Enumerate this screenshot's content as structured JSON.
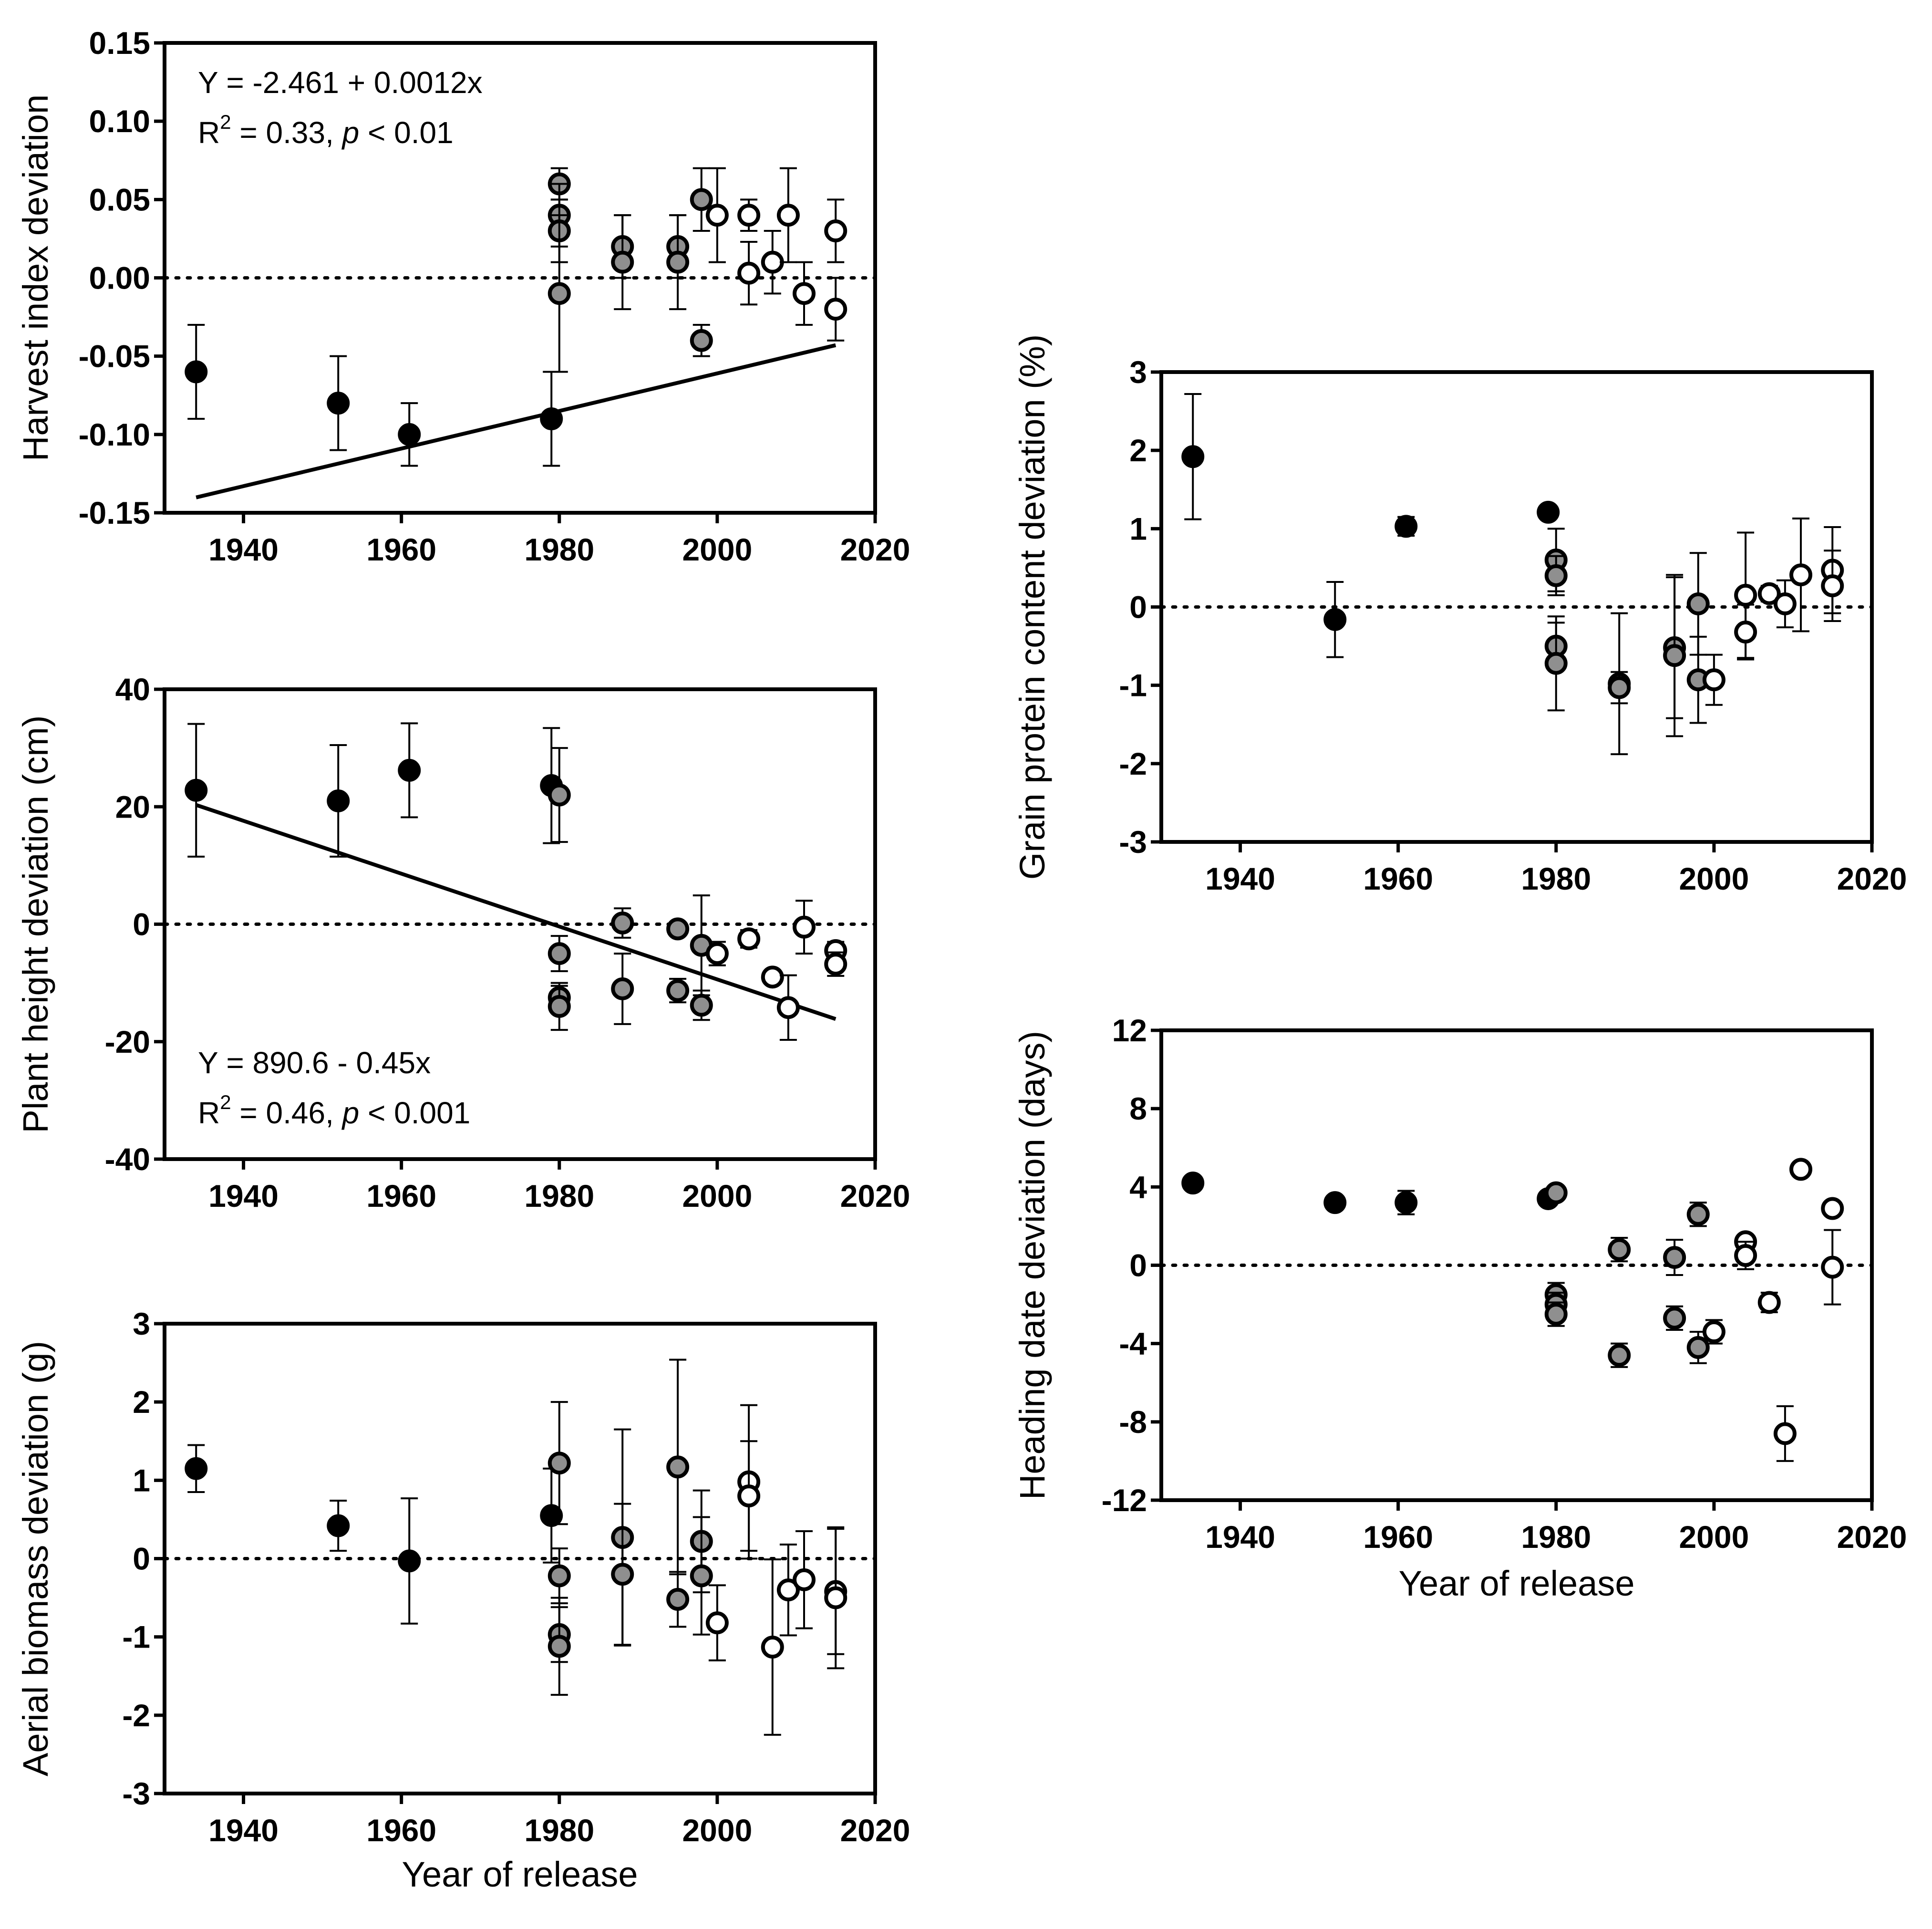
{
  "chart_data": [
    {
      "id": "harvest",
      "type": "scatter",
      "ylabel": "Harvest index deviation",
      "xlabel": "",
      "xlim": [
        1930,
        2020
      ],
      "ylim": [
        -0.15,
        0.15
      ],
      "xticks": [
        1940,
        1960,
        1980,
        2000,
        2020
      ],
      "xtick_labels": [
        "1940",
        "1960",
        "1980",
        "2000",
        "2020"
      ],
      "yticks": [
        -0.15,
        -0.1,
        -0.05,
        0.0,
        0.05,
        0.1,
        0.15
      ],
      "ytick_labels": [
        "-0.15",
        "-0.10",
        "-0.05",
        "0.00",
        "0.05",
        "0.10",
        "0.15"
      ],
      "reference_line": 0,
      "regression": {
        "x1": 1934,
        "x2": 2015,
        "intercept": -2.461,
        "slope": 0.0012
      },
      "equation": "Y = -2.461 + 0.0012x",
      "r2": {
        "r": "R",
        "sup": "2",
        "value": " = 0.33, ",
        "p": "p",
        "comparison": " < 0.01"
      },
      "annotation_position": "top-left",
      "points": [
        {
          "x": 1934,
          "y": -0.06,
          "err": 0.03,
          "group": "old"
        },
        {
          "x": 1952,
          "y": -0.08,
          "err": 0.03,
          "group": "old"
        },
        {
          "x": 1961,
          "y": -0.1,
          "err": 0.02,
          "group": "old"
        },
        {
          "x": 1979,
          "y": -0.09,
          "err": 0.03,
          "group": "old"
        },
        {
          "x": 1980,
          "y": 0.06,
          "err": 0.01,
          "group": "mid"
        },
        {
          "x": 1980,
          "y": 0.04,
          "err": 0.02,
          "group": "mid"
        },
        {
          "x": 1980,
          "y": 0.03,
          "err": 0.02,
          "group": "mid"
        },
        {
          "x": 1980,
          "y": -0.01,
          "err": 0.05,
          "group": "mid"
        },
        {
          "x": 1988,
          "y": 0.02,
          "err": 0.02,
          "group": "mid"
        },
        {
          "x": 1988,
          "y": 0.01,
          "err": 0.03,
          "group": "mid"
        },
        {
          "x": 1995,
          "y": 0.02,
          "err": 0.02,
          "group": "mid"
        },
        {
          "x": 1995,
          "y": 0.01,
          "err": 0.03,
          "group": "mid"
        },
        {
          "x": 1998,
          "y": 0.05,
          "err": 0.02,
          "group": "mid"
        },
        {
          "x": 1998,
          "y": -0.04,
          "err": 0.01,
          "group": "mid"
        },
        {
          "x": 2000,
          "y": 0.04,
          "err": 0.03,
          "group": "new"
        },
        {
          "x": 2004,
          "y": 0.04,
          "err": 0.01,
          "group": "new"
        },
        {
          "x": 2004,
          "y": 0.003,
          "err": 0.02,
          "group": "new"
        },
        {
          "x": 2007,
          "y": 0.01,
          "err": 0.02,
          "group": "new"
        },
        {
          "x": 2009,
          "y": 0.04,
          "err": 0.03,
          "group": "new"
        },
        {
          "x": 2011,
          "y": -0.01,
          "err": 0.02,
          "group": "new"
        },
        {
          "x": 2015,
          "y": 0.03,
          "err": 0.02,
          "group": "new"
        },
        {
          "x": 2015,
          "y": -0.02,
          "err": 0.02,
          "group": "new"
        }
      ]
    },
    {
      "id": "height",
      "type": "scatter",
      "ylabel": "Plant height deviation (cm)",
      "xlabel": "",
      "xlim": [
        1930,
        2020
      ],
      "ylim": [
        -40,
        40
      ],
      "xticks": [
        1940,
        1960,
        1980,
        2000,
        2020
      ],
      "xtick_labels": [
        "1940",
        "1960",
        "1980",
        "2000",
        "2020"
      ],
      "yticks": [
        -40,
        -20,
        0,
        20,
        40
      ],
      "ytick_labels": [
        "-40",
        "-20",
        "0",
        "20",
        "40"
      ],
      "reference_line": 0,
      "regression": {
        "x1": 1934,
        "x2": 2015,
        "intercept": 890.6,
        "slope": -0.45
      },
      "equation": "Y = 890.6 - 0.45x",
      "r2": {
        "r": "R",
        "sup": "2",
        "value": " = 0.46, ",
        "p": "p",
        "comparison": " < 0.001"
      },
      "annotation_position": "bottom-left",
      "points": [
        {
          "x": 1934,
          "y": 22.8,
          "err": 11.3,
          "group": "old"
        },
        {
          "x": 1952,
          "y": 21.0,
          "err": 9.5,
          "group": "old"
        },
        {
          "x": 1961,
          "y": 26.2,
          "err": 8.0,
          "group": "old"
        },
        {
          "x": 1979,
          "y": 23.6,
          "err": 9.8,
          "group": "old"
        },
        {
          "x": 1980,
          "y": 22.0,
          "err": 8.0,
          "group": "mid"
        },
        {
          "x": 1980,
          "y": -5.0,
          "err": 3.0,
          "group": "mid"
        },
        {
          "x": 1980,
          "y": -12.5,
          "err": 2.0,
          "group": "mid"
        },
        {
          "x": 1980,
          "y": -14.0,
          "err": 4.0,
          "group": "mid"
        },
        {
          "x": 1988,
          "y": 0.2,
          "err": 2.5,
          "group": "mid"
        },
        {
          "x": 1988,
          "y": -11.0,
          "err": 6.0,
          "group": "mid"
        },
        {
          "x": 1995,
          "y": -0.8,
          "err": 1.0,
          "group": "mid"
        },
        {
          "x": 1995,
          "y": -11.3,
          "err": 2.0,
          "group": "mid"
        },
        {
          "x": 1998,
          "y": -3.6,
          "err": 8.5,
          "group": "mid"
        },
        {
          "x": 1998,
          "y": -13.8,
          "err": 2.5,
          "group": "mid"
        },
        {
          "x": 2000,
          "y": -5.0,
          "err": 2.0,
          "group": "new"
        },
        {
          "x": 2004,
          "y": -2.5,
          "err": 1.5,
          "group": "new"
        },
        {
          "x": 2007,
          "y": -9.0,
          "err": 1.0,
          "group": "new"
        },
        {
          "x": 2009,
          "y": -14.2,
          "err": 5.5,
          "group": "new"
        },
        {
          "x": 2011,
          "y": -0.5,
          "err": 4.5,
          "group": "new"
        },
        {
          "x": 2015,
          "y": -4.5,
          "err": 1.5,
          "group": "new"
        },
        {
          "x": 2015,
          "y": -6.8,
          "err": 2.0,
          "group": "new"
        }
      ]
    },
    {
      "id": "biomass",
      "type": "scatter",
      "ylabel": "Aerial biomass deviation (g)",
      "xlabel": "Year of release",
      "xlim": [
        1930,
        2020
      ],
      "ylim": [
        -3,
        3
      ],
      "xticks": [
        1940,
        1960,
        1980,
        2000,
        2020
      ],
      "xtick_labels": [
        "1940",
        "1960",
        "1980",
        "2000",
        "2020"
      ],
      "yticks": [
        -3,
        -2,
        -1,
        0,
        1,
        2,
        3
      ],
      "ytick_labels": [
        "-3",
        "-2",
        "-1",
        "0",
        "1",
        "2",
        "3"
      ],
      "reference_line": 0,
      "points": [
        {
          "x": 1934,
          "y": 1.15,
          "err": 0.3,
          "group": "old"
        },
        {
          "x": 1952,
          "y": 0.42,
          "err": 0.32,
          "group": "old"
        },
        {
          "x": 1961,
          "y": -0.03,
          "err": 0.8,
          "group": "old"
        },
        {
          "x": 1979,
          "y": 0.55,
          "err": 0.6,
          "group": "old"
        },
        {
          "x": 1980,
          "y": 1.22,
          "err": 0.78,
          "group": "mid"
        },
        {
          "x": 1980,
          "y": -0.22,
          "err": 0.35,
          "group": "mid"
        },
        {
          "x": 1980,
          "y": -0.97,
          "err": 0.35,
          "group": "mid"
        },
        {
          "x": 1980,
          "y": -1.12,
          "err": 0.62,
          "group": "mid"
        },
        {
          "x": 1988,
          "y": 0.27,
          "err": 1.38,
          "group": "mid"
        },
        {
          "x": 1988,
          "y": -0.2,
          "err": 0.9,
          "group": "mid"
        },
        {
          "x": 1995,
          "y": 1.17,
          "err": 1.37,
          "group": "mid"
        },
        {
          "x": 1995,
          "y": -0.52,
          "err": 0.35,
          "group": "mid"
        },
        {
          "x": 1998,
          "y": 0.22,
          "err": 0.65,
          "group": "mid"
        },
        {
          "x": 1998,
          "y": -0.22,
          "err": 0.75,
          "group": "mid"
        },
        {
          "x": 2000,
          "y": -0.82,
          "err": 0.48,
          "group": "new"
        },
        {
          "x": 2004,
          "y": 0.98,
          "err": 0.98,
          "group": "new"
        },
        {
          "x": 2004,
          "y": 0.8,
          "err": 0.7,
          "group": "new"
        },
        {
          "x": 2007,
          "y": -1.13,
          "err": 1.12,
          "group": "new"
        },
        {
          "x": 2009,
          "y": -0.4,
          "err": 0.58,
          "group": "new"
        },
        {
          "x": 2011,
          "y": -0.27,
          "err": 0.62,
          "group": "new"
        },
        {
          "x": 2015,
          "y": -0.42,
          "err": 0.8,
          "group": "new"
        },
        {
          "x": 2015,
          "y": -0.5,
          "err": 0.9,
          "group": "new"
        }
      ]
    },
    {
      "id": "protein",
      "type": "scatter",
      "ylabel": "Grain protein content deviation (%)",
      "xlabel": "",
      "xlim": [
        1930,
        2020
      ],
      "ylim": [
        -3,
        3
      ],
      "xticks": [
        1940,
        1960,
        1980,
        2000,
        2020
      ],
      "xtick_labels": [
        "1940",
        "1960",
        "1980",
        "2000",
        "2020"
      ],
      "yticks": [
        -3,
        -2,
        -1,
        0,
        1,
        2,
        3
      ],
      "ytick_labels": [
        "-3",
        "-2",
        "-1",
        "0",
        "1",
        "2",
        "3"
      ],
      "reference_line": 0,
      "points": [
        {
          "x": 1934,
          "y": 1.92,
          "err": 0.8,
          "group": "old"
        },
        {
          "x": 1952,
          "y": -0.16,
          "err": 0.48,
          "group": "old"
        },
        {
          "x": 1961,
          "y": 1.03,
          "err": 0.12,
          "group": "old"
        },
        {
          "x": 1979,
          "y": 1.21,
          "err": 0.0,
          "group": "old"
        },
        {
          "x": 1980,
          "y": 0.6,
          "err": 0.4,
          "group": "mid"
        },
        {
          "x": 1980,
          "y": 0.4,
          "err": 0.25,
          "group": "mid"
        },
        {
          "x": 1980,
          "y": -0.5,
          "err": 0.3,
          "group": "mid"
        },
        {
          "x": 1980,
          "y": -0.72,
          "err": 0.6,
          "group": "mid"
        },
        {
          "x": 1988,
          "y": -0.98,
          "err": 0.9,
          "group": "mid"
        },
        {
          "x": 1988,
          "y": -1.03,
          "err": 0.2,
          "group": "mid"
        },
        {
          "x": 1995,
          "y": -0.52,
          "err": 0.9,
          "group": "mid"
        },
        {
          "x": 1995,
          "y": -0.62,
          "err": 1.03,
          "group": "mid"
        },
        {
          "x": 1998,
          "y": 0.04,
          "err": 0.65,
          "group": "mid"
        },
        {
          "x": 1998,
          "y": -0.93,
          "err": 0.55,
          "group": "mid"
        },
        {
          "x": 2000,
          "y": -0.93,
          "err": 0.32,
          "group": "new"
        },
        {
          "x": 2004,
          "y": 0.15,
          "err": 0.8,
          "group": "new"
        },
        {
          "x": 2004,
          "y": -0.32,
          "err": 0.35,
          "group": "new"
        },
        {
          "x": 2007,
          "y": 0.17,
          "err": 0.1,
          "group": "new"
        },
        {
          "x": 2009,
          "y": 0.04,
          "err": 0.3,
          "group": "new"
        },
        {
          "x": 2011,
          "y": 0.41,
          "err": 0.72,
          "group": "new"
        },
        {
          "x": 2015,
          "y": 0.47,
          "err": 0.55,
          "group": "new"
        },
        {
          "x": 2015,
          "y": 0.27,
          "err": 0.45,
          "group": "new"
        }
      ]
    },
    {
      "id": "heading",
      "type": "scatter",
      "ylabel": "Heading date deviation (days)",
      "xlabel": "Year of release",
      "xlim": [
        1930,
        2020
      ],
      "ylim": [
        -12,
        12
      ],
      "xticks": [
        1940,
        1960,
        1980,
        2000,
        2020
      ],
      "xtick_labels": [
        "1940",
        "1960",
        "1980",
        "2000",
        "2020"
      ],
      "yticks": [
        -12,
        -8,
        -4,
        0,
        4,
        8,
        12
      ],
      "ytick_labels": [
        "-12",
        "-8",
        "-4",
        "0",
        "4",
        "8",
        "12"
      ],
      "reference_line": 0,
      "points": [
        {
          "x": 1934,
          "y": 4.2,
          "err": 0.0,
          "group": "old"
        },
        {
          "x": 1952,
          "y": 3.2,
          "err": 0.0,
          "group": "old"
        },
        {
          "x": 1961,
          "y": 3.2,
          "err": 0.6,
          "group": "old"
        },
        {
          "x": 1979,
          "y": 3.4,
          "err": 0.0,
          "group": "old"
        },
        {
          "x": 1980,
          "y": 3.7,
          "err": 0.3,
          "group": "mid"
        },
        {
          "x": 1980,
          "y": -1.5,
          "err": 0.6,
          "group": "mid"
        },
        {
          "x": 1980,
          "y": -2.0,
          "err": 0.6,
          "group": "mid"
        },
        {
          "x": 1980,
          "y": -2.5,
          "err": 0.6,
          "group": "mid"
        },
        {
          "x": 1988,
          "y": 0.8,
          "err": 0.6,
          "group": "mid"
        },
        {
          "x": 1988,
          "y": -4.6,
          "err": 0.6,
          "group": "mid"
        },
        {
          "x": 1995,
          "y": 0.4,
          "err": 0.9,
          "group": "mid"
        },
        {
          "x": 1995,
          "y": -2.7,
          "err": 0.6,
          "group": "mid"
        },
        {
          "x": 1998,
          "y": 2.6,
          "err": 0.6,
          "group": "mid"
        },
        {
          "x": 1998,
          "y": -4.2,
          "err": 0.8,
          "group": "mid"
        },
        {
          "x": 2000,
          "y": -3.4,
          "err": 0.6,
          "group": "new"
        },
        {
          "x": 2004,
          "y": 1.2,
          "err": 0.3,
          "group": "new"
        },
        {
          "x": 2004,
          "y": 0.5,
          "err": 0.7,
          "group": "new"
        },
        {
          "x": 2007,
          "y": -1.9,
          "err": 0.5,
          "group": "new"
        },
        {
          "x": 2009,
          "y": -8.6,
          "err": 1.4,
          "group": "new"
        },
        {
          "x": 2011,
          "y": 4.9,
          "err": 0.0,
          "group": "new"
        },
        {
          "x": 2015,
          "y": 2.9,
          "err": 0.0,
          "group": "new"
        },
        {
          "x": 2015,
          "y": -0.1,
          "err": 1.9,
          "group": "new"
        }
      ]
    }
  ],
  "colors": {
    "old_fill": "#000000",
    "mid_fill": "#8f8f8f",
    "new_fill": "#ffffff",
    "stroke": "#000000"
  }
}
